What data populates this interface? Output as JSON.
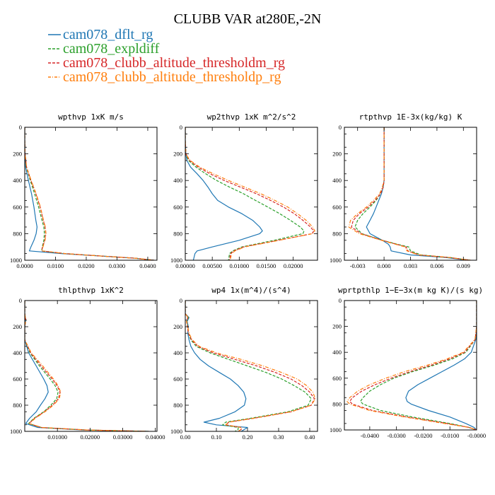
{
  "figure_title": "CLUBB VAR at280E,-2N",
  "colors": {
    "cam078_dflt_rg": "#1f77b4",
    "cam078_expldiff": "#2ca02c",
    "cam078_clubb_altitude_thresholdm_rg": "#d62728",
    "cam078_clubb_altitude_thresholdp_rg": "#ff7f0e"
  },
  "legend": [
    {
      "name": "cam078_dflt_rg",
      "color": "#1f77b4",
      "style": "solid"
    },
    {
      "name": "cam078_expldiff",
      "color": "#2ca02c",
      "style": "dashed"
    },
    {
      "name": "cam078_clubb_altitude_thresholdm_rg",
      "color": "#d62728",
      "style": "dashed"
    },
    {
      "name": "cam078_clubb_altitude_thresholdp_rg",
      "color": "#ff7f0e",
      "style": "dashdot"
    }
  ],
  "chart_data": [
    {
      "type": "line",
      "title": "wpthvp  1xK m/s",
      "xlim": [
        0,
        0.043
      ],
      "ylim": [
        1000,
        0
      ],
      "xticks": [
        0,
        0.01,
        0.02,
        0.03,
        0.04
      ],
      "xticklabels": [
        "0.0000",
        "0.0100",
        "0.0200",
        "0.0300",
        "0.0400"
      ],
      "yticks": [
        0,
        200,
        400,
        600,
        800,
        1000
      ],
      "yticklabels": [
        "0",
        "200",
        "400",
        "600",
        "800",
        "1000"
      ],
      "y": [
        0,
        100,
        200,
        300,
        400,
        500,
        600,
        700,
        750,
        800,
        850,
        900,
        930,
        950,
        970,
        985,
        1000
      ],
      "series": [
        {
          "name": "cam078_dflt_rg",
          "values": [
            0,
            0,
            0.0001,
            0.0003,
            0.0012,
            0.0022,
            0.003,
            0.0036,
            0.004,
            0.0037,
            0.003,
            0.002,
            0.0015,
            0.012,
            0.026,
            0.036,
            0.042
          ]
        },
        {
          "name": "cam078_expldiff",
          "values": [
            0,
            0,
            0.0001,
            0.0005,
            0.0018,
            0.0032,
            0.0045,
            0.0056,
            0.0062,
            0.0064,
            0.0062,
            0.0057,
            0.0055,
            0.013,
            0.026,
            0.036,
            0.042
          ]
        },
        {
          "name": "cam078_clubb_altitude_thresholdm_rg",
          "values": [
            0,
            0,
            0.0001,
            0.0006,
            0.002,
            0.0036,
            0.005,
            0.006,
            0.0066,
            0.0068,
            0.0065,
            0.0058,
            0.0055,
            0.013,
            0.026,
            0.036,
            0.042
          ]
        },
        {
          "name": "cam078_clubb_altitude_thresholdp_rg",
          "values": [
            0,
            0,
            0.0001,
            0.0006,
            0.0021,
            0.0037,
            0.0051,
            0.0061,
            0.0067,
            0.0069,
            0.0066,
            0.0059,
            0.0056,
            0.013,
            0.026,
            0.036,
            0.042
          ]
        }
      ]
    },
    {
      "type": "line",
      "title": "wp2thvp  1xK m^2/s^2",
      "xlim": [
        0,
        0.0245
      ],
      "ylim": [
        1000,
        0
      ],
      "xticks": [
        0,
        0.005,
        0.01,
        0.015,
        0.02
      ],
      "xticklabels": [
        "0.00000",
        "0.00500",
        "0.01000",
        "0.01500",
        "0.02000"
      ],
      "yticks": [
        0,
        200,
        400,
        600,
        800,
        1000
      ],
      "yticklabels": [
        "0",
        "200",
        "400",
        "600",
        "800",
        "1000"
      ],
      "y": [
        0,
        100,
        200,
        250,
        300,
        350,
        400,
        450,
        500,
        550,
        600,
        650,
        700,
        750,
        780,
        800,
        850,
        900,
        930,
        950,
        1000
      ],
      "series": [
        {
          "name": "cam078_dflt_rg",
          "values": [
            0,
            0,
            0.0001,
            0.0003,
            0.001,
            0.0022,
            0.0033,
            0.0042,
            0.005,
            0.006,
            0.008,
            0.0105,
            0.0125,
            0.0138,
            0.0143,
            0.0138,
            0.01,
            0.005,
            0.0022,
            0.0018,
            0.0015
          ]
        },
        {
          "name": "cam078_expldiff",
          "values": [
            0,
            0,
            0.0001,
            0.0006,
            0.002,
            0.0038,
            0.0058,
            0.0082,
            0.0108,
            0.013,
            0.0153,
            0.0175,
            0.0195,
            0.0213,
            0.022,
            0.0218,
            0.0165,
            0.0105,
            0.0088,
            0.0082,
            0.008
          ]
        },
        {
          "name": "cam078_clubb_altitude_thresholdm_rg",
          "values": [
            0,
            0,
            0.0001,
            0.0008,
            0.0024,
            0.0046,
            0.0072,
            0.0102,
            0.0132,
            0.0158,
            0.0182,
            0.0202,
            0.0218,
            0.0232,
            0.0238,
            0.0235,
            0.0172,
            0.0108,
            0.009,
            0.0084,
            0.0082
          ]
        },
        {
          "name": "cam078_clubb_altitude_thresholdp_rg",
          "values": [
            0,
            0,
            0.0001,
            0.0009,
            0.0027,
            0.0052,
            0.008,
            0.011,
            0.014,
            0.0166,
            0.019,
            0.0208,
            0.0224,
            0.0236,
            0.024,
            0.0236,
            0.0174,
            0.011,
            0.0092,
            0.0086,
            0.0083
          ]
        }
      ]
    },
    {
      "type": "line",
      "title": "rtpthvp  1E-3x(kg/kg) K",
      "xlim": [
        -0.0045,
        0.0105
      ],
      "ylim": [
        1000,
        0
      ],
      "xticks": [
        -0.003,
        0,
        0.003,
        0.006,
        0.009
      ],
      "xticklabels": [
        "-0.003",
        "0.000",
        "0.003",
        "0.006",
        "0.009"
      ],
      "yticks": [
        0,
        200,
        400,
        600,
        800,
        1000
      ],
      "yticklabels": [
        "0",
        "200",
        "400",
        "600",
        "800",
        "1000"
      ],
      "y": [
        0,
        100,
        200,
        300,
        400,
        450,
        500,
        550,
        600,
        650,
        700,
        750,
        800,
        850,
        880,
        900,
        930,
        960,
        980,
        1000
      ],
      "series": [
        {
          "name": "cam078_dflt_rg",
          "values": [
            0,
            0,
            0,
            0,
            0,
            -0.0001,
            -0.0003,
            -0.0006,
            -0.0009,
            -0.0012,
            -0.0016,
            -0.002,
            -0.0016,
            -0.0002,
            0.0005,
            0.0007,
            0.0008,
            0.003,
            0.007,
            0.0095
          ]
        },
        {
          "name": "cam078_expldiff",
          "values": [
            0,
            0,
            0,
            0,
            0,
            -0.0001,
            -0.0004,
            -0.0009,
            -0.0016,
            -0.0024,
            -0.003,
            -0.0033,
            -0.0025,
            -0.0002,
            0.0015,
            0.0028,
            0.003,
            0.0042,
            0.0075,
            0.0098
          ]
        },
        {
          "name": "cam078_clubb_altitude_thresholdm_rg",
          "values": [
            0,
            0,
            0,
            0,
            0,
            -0.0001,
            -0.0004,
            -0.001,
            -0.0018,
            -0.0028,
            -0.0035,
            -0.0037,
            -0.0026,
            -0.0002,
            0.0014,
            0.0025,
            0.0027,
            0.004,
            0.0074,
            0.0098
          ]
        },
        {
          "name": "cam078_clubb_altitude_thresholdp_rg",
          "values": [
            0,
            0,
            0,
            0,
            0,
            -0.0002,
            -0.0005,
            -0.0012,
            -0.002,
            -0.003,
            -0.0038,
            -0.004,
            -0.0028,
            -0.0003,
            0.0013,
            0.0024,
            0.0026,
            0.0039,
            0.0074,
            0.0098
          ]
        }
      ]
    },
    {
      "type": "line",
      "title": "thlpthvp  1xK^2",
      "xlim": [
        0,
        0.0405
      ],
      "ylim": [
        1000,
        0
      ],
      "xticks": [
        0.01,
        0.02,
        0.03,
        0.04
      ],
      "xticklabels": [
        "0.01000",
        "0.02000",
        "0.03000",
        "0.04000"
      ],
      "yticks": [
        0,
        200,
        400,
        600,
        800,
        1000
      ],
      "yticklabels": [
        "0",
        "200",
        "400",
        "600",
        "800",
        "1000"
      ],
      "y": [
        0,
        100,
        150,
        200,
        300,
        400,
        500,
        600,
        650,
        700,
        750,
        800,
        850,
        900,
        940,
        970,
        990,
        1000
      ],
      "series": [
        {
          "name": "cam078_dflt_rg",
          "values": [
            0,
            0,
            0.0003,
            0,
            0,
            0.0012,
            0.0035,
            0.0058,
            0.0068,
            0.0072,
            0.0062,
            0.0048,
            0.0035,
            0.0015,
            0.0003,
            0.004,
            0.018,
            0.038
          ]
        },
        {
          "name": "cam078_expldiff",
          "values": [
            0,
            0,
            0.0003,
            0,
            0,
            0.0016,
            0.0045,
            0.0078,
            0.0093,
            0.0102,
            0.0098,
            0.008,
            0.0058,
            0.0028,
            0.0012,
            0.005,
            0.019,
            0.038
          ]
        },
        {
          "name": "cam078_clubb_altitude_thresholdm_rg",
          "values": [
            0,
            0,
            0.0003,
            0,
            0,
            0.0018,
            0.005,
            0.0084,
            0.0099,
            0.0108,
            0.0103,
            0.0085,
            0.006,
            0.003,
            0.0013,
            0.005,
            0.019,
            0.038
          ]
        },
        {
          "name": "cam078_clubb_altitude_thresholdp_rg",
          "values": [
            0,
            0,
            0.0003,
            0,
            0,
            0.002,
            0.0055,
            0.0088,
            0.0102,
            0.011,
            0.0106,
            0.0088,
            0.0062,
            0.0032,
            0.0014,
            0.0052,
            0.019,
            0.038
          ]
        }
      ]
    },
    {
      "type": "line",
      "title": "wp4  1x(m^4)/(s^4)",
      "xlim": [
        0,
        0.425
      ],
      "ylim": [
        1000,
        0
      ],
      "xticks": [
        0,
        0.1,
        0.2,
        0.3,
        0.4
      ],
      "xticklabels": [
        "0.00",
        "0.10",
        "0.20",
        "0.30",
        "0.40"
      ],
      "yticks": [
        0,
        200,
        400,
        600,
        800,
        1000
      ],
      "yticklabels": [
        "0",
        "200",
        "400",
        "600",
        "800",
        "1000"
      ],
      "y": [
        0,
        100,
        130,
        160,
        200,
        250,
        300,
        350,
        400,
        450,
        500,
        550,
        600,
        650,
        700,
        750,
        800,
        850,
        900,
        930,
        950,
        970,
        985,
        1000
      ],
      "series": [
        {
          "name": "cam078_dflt_rg",
          "values": [
            0,
            0,
            0.012,
            0.006,
            0.01,
            0.008,
            0.012,
            0.018,
            0.03,
            0.048,
            0.075,
            0.11,
            0.145,
            0.17,
            0.188,
            0.195,
            0.19,
            0.16,
            0.11,
            0.06,
            0.1,
            0.2,
            0.19,
            0.18
          ]
        },
        {
          "name": "cam078_expldiff",
          "values": [
            0,
            0,
            0.01,
            0.005,
            0.008,
            0.01,
            0.018,
            0.035,
            0.08,
            0.14,
            0.2,
            0.26,
            0.31,
            0.35,
            0.385,
            0.405,
            0.395,
            0.33,
            0.21,
            0.13,
            0.12,
            0.17,
            0.17,
            0.16
          ]
        },
        {
          "name": "cam078_clubb_altitude_thresholdm_rg",
          "values": [
            0,
            0,
            0.008,
            0.004,
            0.007,
            0.01,
            0.02,
            0.04,
            0.09,
            0.16,
            0.23,
            0.29,
            0.34,
            0.375,
            0.4,
            0.415,
            0.405,
            0.34,
            0.22,
            0.14,
            0.13,
            0.18,
            0.18,
            0.17
          ]
        },
        {
          "name": "cam078_clubb_altitude_thresholdp_rg",
          "values": [
            0,
            0,
            0.009,
            0.004,
            0.008,
            0.012,
            0.022,
            0.045,
            0.1,
            0.18,
            0.25,
            0.31,
            0.36,
            0.39,
            0.41,
            0.418,
            0.405,
            0.34,
            0.22,
            0.14,
            0.13,
            0.18,
            0.18,
            0.17
          ]
        }
      ]
    },
    {
      "type": "line",
      "title": "wprtpthlp  1−E−3x(m kg K)/(s kg)",
      "xlim": [
        -0.0495,
        0
      ],
      "ylim": [
        1000,
        0
      ],
      "xticks": [
        -0.04,
        -0.03,
        -0.02,
        -0.01,
        0
      ],
      "xticklabels": [
        "-0.0400",
        "-0.0300",
        "-0.0200",
        "-0.0100",
        "-0.0000"
      ],
      "yticks": [
        0,
        200,
        400,
        600,
        800,
        1000
      ],
      "yticklabels": [
        "0",
        "200",
        "400",
        "600",
        "800",
        "1000"
      ],
      "y": [
        0,
        100,
        200,
        300,
        400,
        450,
        500,
        550,
        600,
        650,
        700,
        750,
        780,
        800,
        850,
        900,
        950,
        980,
        1000
      ],
      "series": [
        {
          "name": "cam078_dflt_rg",
          "values": [
            0,
            0,
            0,
            -0.0003,
            -0.002,
            -0.0045,
            -0.0085,
            -0.013,
            -0.0175,
            -0.022,
            -0.0255,
            -0.0265,
            -0.026,
            -0.0245,
            -0.018,
            -0.01,
            -0.004,
            -0.001,
            0
          ]
        },
        {
          "name": "cam078_expldiff",
          "values": [
            0,
            0,
            0,
            -0.0005,
            -0.004,
            -0.009,
            -0.016,
            -0.024,
            -0.031,
            -0.036,
            -0.04,
            -0.0425,
            -0.0435,
            -0.0425,
            -0.036,
            -0.024,
            -0.01,
            -0.003,
            0
          ]
        },
        {
          "name": "cam078_clubb_altitude_thresholdm_rg",
          "values": [
            0,
            0,
            0,
            -0.0005,
            -0.0045,
            -0.01,
            -0.017,
            -0.025,
            -0.032,
            -0.038,
            -0.043,
            -0.0465,
            -0.0475,
            -0.0465,
            -0.039,
            -0.026,
            -0.011,
            -0.003,
            0
          ]
        },
        {
          "name": "cam078_clubb_altitude_thresholdp_rg",
          "values": [
            0,
            0,
            0,
            -0.0006,
            -0.005,
            -0.011,
            -0.0185,
            -0.027,
            -0.034,
            -0.04,
            -0.0445,
            -0.0475,
            -0.0485,
            -0.0475,
            -0.04,
            -0.027,
            -0.012,
            -0.003,
            0
          ]
        }
      ]
    }
  ]
}
